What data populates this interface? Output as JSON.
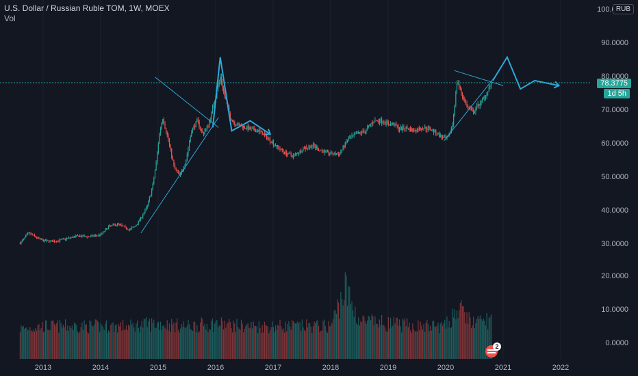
{
  "legend": {
    "title": "U.S. Dollar / Russian Ruble TOM, 1W, MOEX",
    "sub": "Vol"
  },
  "currency_badge": "RUB",
  "last_price_label": "78.3775",
  "countdown_label": "1d 5h",
  "events_badge_count": "2",
  "colors": {
    "background": "#131722",
    "up": "#26a69a",
    "down": "#ef5350",
    "drawing": "#2ea8d9",
    "grid": "#1e222d"
  },
  "chart_data": {
    "type": "candlestick",
    "interval": "1W",
    "price_axis": {
      "ticks": [
        {
          "value": 100,
          "label": "100.0000"
        },
        {
          "value": 90,
          "label": "90.0000"
        },
        {
          "value": 80,
          "label": "80.0000"
        },
        {
          "value": 70,
          "label": "70.0000"
        },
        {
          "value": 60,
          "label": "60.0000"
        },
        {
          "value": 50,
          "label": "50.0000"
        },
        {
          "value": 40,
          "label": "40.0000"
        },
        {
          "value": 30,
          "label": "30.0000"
        },
        {
          "value": 20,
          "label": "20.0000"
        },
        {
          "value": 10,
          "label": "10.0000"
        },
        {
          "value": 0,
          "label": "0.0000"
        }
      ]
    },
    "time_axis": {
      "ticks": [
        {
          "value": 2013,
          "label": "2013"
        },
        {
          "value": 2014,
          "label": "2014"
        },
        {
          "value": 2015,
          "label": "2015"
        },
        {
          "value": 2016,
          "label": "2016"
        },
        {
          "value": 2017,
          "label": "2017"
        },
        {
          "value": 2018,
          "label": "2018"
        },
        {
          "value": 2019,
          "label": "2019"
        },
        {
          "value": 2020,
          "label": "2020"
        },
        {
          "value": 2021,
          "label": "2021"
        },
        {
          "value": 2022,
          "label": "2022"
        }
      ]
    },
    "price_path": [
      [
        2012.6,
        30.5
      ],
      [
        2012.75,
        33.5
      ],
      [
        2012.9,
        32
      ],
      [
        2013.0,
        31.2
      ],
      [
        2013.2,
        31
      ],
      [
        2013.4,
        31.8
      ],
      [
        2013.6,
        32.6
      ],
      [
        2013.8,
        32.4
      ],
      [
        2014.0,
        33
      ],
      [
        2014.15,
        35.5
      ],
      [
        2014.3,
        36.2
      ],
      [
        2014.5,
        34.5
      ],
      [
        2014.6,
        35.5
      ],
      [
        2014.7,
        38
      ],
      [
        2014.8,
        41
      ],
      [
        2014.9,
        47
      ],
      [
        2014.97,
        55
      ],
      [
        2015.02,
        63
      ],
      [
        2015.08,
        68
      ],
      [
        2015.18,
        61
      ],
      [
        2015.28,
        53
      ],
      [
        2015.38,
        50.5
      ],
      [
        2015.48,
        55
      ],
      [
        2015.58,
        64
      ],
      [
        2015.68,
        67
      ],
      [
        2015.78,
        63
      ],
      [
        2015.88,
        66
      ],
      [
        2015.95,
        71
      ],
      [
        2016.02,
        76
      ],
      [
        2016.08,
        80
      ],
      [
        2016.15,
        75
      ],
      [
        2016.25,
        68
      ],
      [
        2016.35,
        66
      ],
      [
        2016.45,
        65.5
      ],
      [
        2016.6,
        64.5
      ],
      [
        2016.75,
        64
      ],
      [
        2016.9,
        62
      ],
      [
        2017.05,
        59.5
      ],
      [
        2017.2,
        57.5
      ],
      [
        2017.35,
        56.5
      ],
      [
        2017.55,
        59
      ],
      [
        2017.7,
        59.5
      ],
      [
        2017.85,
        58
      ],
      [
        2018.0,
        57.2
      ],
      [
        2018.15,
        57
      ],
      [
        2018.3,
        61.5
      ],
      [
        2018.45,
        63
      ],
      [
        2018.6,
        64
      ],
      [
        2018.75,
        67
      ],
      [
        2018.9,
        67
      ],
      [
        2019.0,
        66
      ],
      [
        2019.1,
        66
      ],
      [
        2019.2,
        64.5
      ],
      [
        2019.3,
        65
      ],
      [
        2019.45,
        64
      ],
      [
        2019.6,
        65
      ],
      [
        2019.75,
        64.5
      ],
      [
        2019.9,
        62.5
      ],
      [
        2020.0,
        61.5
      ],
      [
        2020.05,
        62
      ],
      [
        2020.12,
        66
      ],
      [
        2020.2,
        79
      ],
      [
        2020.28,
        75
      ],
      [
        2020.38,
        71
      ],
      [
        2020.48,
        69.5
      ],
      [
        2020.58,
        72
      ],
      [
        2020.68,
        74
      ],
      [
        2020.75,
        77
      ],
      [
        2020.8,
        78.3775
      ]
    ],
    "volume_path": [
      [
        2012.6,
        6
      ],
      [
        2013.0,
        7
      ],
      [
        2013.5,
        7
      ],
      [
        2014.0,
        7
      ],
      [
        2014.5,
        7
      ],
      [
        2014.9,
        8
      ],
      [
        2015.0,
        8
      ],
      [
        2015.5,
        7
      ],
      [
        2016.0,
        8
      ],
      [
        2016.5,
        7
      ],
      [
        2017.0,
        7
      ],
      [
        2017.5,
        7
      ],
      [
        2018.0,
        7
      ],
      [
        2018.25,
        22
      ],
      [
        2018.5,
        9
      ],
      [
        2019.0,
        8
      ],
      [
        2019.5,
        7
      ],
      [
        2020.0,
        7
      ],
      [
        2020.2,
        14
      ],
      [
        2020.5,
        8
      ],
      [
        2020.8,
        10
      ]
    ],
    "drawings": [
      {
        "type": "trendline",
        "points": [
          [
            2014.7,
            33.5
          ],
          [
            2016.05,
            68
          ]
        ]
      },
      {
        "type": "trendline",
        "points": [
          [
            2014.95,
            80
          ],
          [
            2016.05,
            65
          ]
        ]
      },
      {
        "type": "path",
        "points": [
          [
            2015.95,
            65
          ],
          [
            2016.08,
            86
          ],
          [
            2016.28,
            64
          ],
          [
            2016.6,
            67
          ],
          [
            2016.95,
            63
          ]
        ],
        "arrow": true
      },
      {
        "type": "trendline",
        "points": [
          [
            2019.97,
            61
          ],
          [
            2020.85,
            80
          ]
        ]
      },
      {
        "type": "trendline",
        "points": [
          [
            2020.15,
            82
          ],
          [
            2021.0,
            77.5
          ]
        ]
      },
      {
        "type": "path",
        "points": [
          [
            2020.82,
            79
          ],
          [
            2021.07,
            86
          ],
          [
            2021.3,
            76.5
          ],
          [
            2021.55,
            79
          ],
          [
            2021.97,
            77.5
          ]
        ],
        "arrow": true
      }
    ],
    "last_price_line": 78.3775
  }
}
